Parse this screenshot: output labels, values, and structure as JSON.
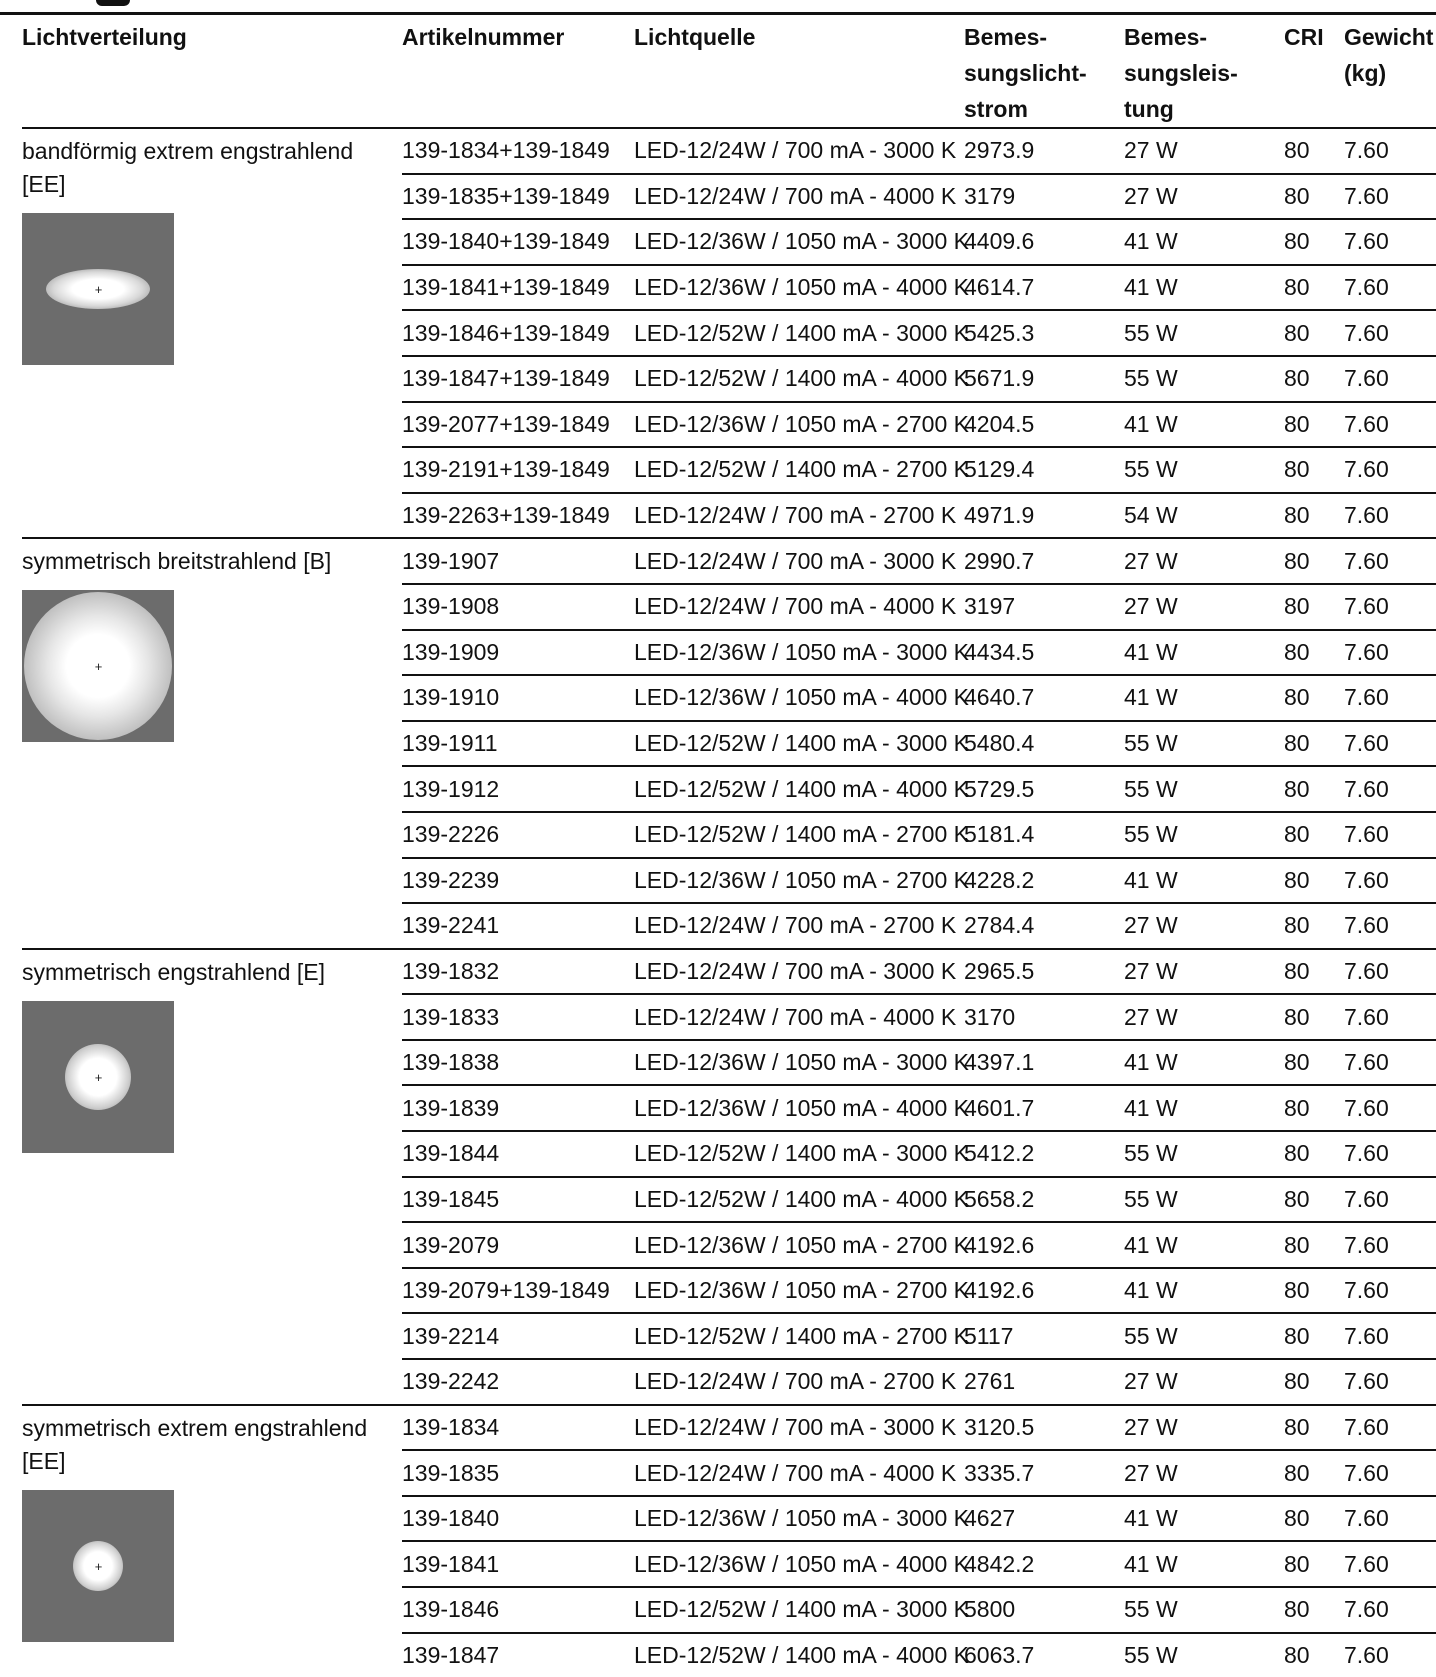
{
  "table": {
    "headers": {
      "lichtverteilung": "Lichtverteilung",
      "artikelnummer": "Artikelnummer",
      "lichtquelle": "Lichtquelle",
      "lichtstrom": [
        "Bemes-",
        "sungslicht-",
        "strom"
      ],
      "leistung": [
        "Bemes-",
        "sungsleis-",
        "tung"
      ],
      "cri": "CRI",
      "gewicht": [
        "Gewicht",
        "(kg)"
      ]
    },
    "groups": [
      {
        "label": "bandförmig extrem engstrahlend [EE]",
        "icon": "band-beam-icon",
        "rows": [
          [
            "139-1834+139-1849",
            "LED-12/24W / 700 mA - 3000 K",
            "2973.9",
            "27 W",
            "80",
            "7.60"
          ],
          [
            "139-1835+139-1849",
            "LED-12/24W / 700 mA - 4000 K",
            "3179",
            "27 W",
            "80",
            "7.60"
          ],
          [
            "139-1840+139-1849",
            "LED-12/36W / 1050 mA - 3000 K",
            "4409.6",
            "41 W",
            "80",
            "7.60"
          ],
          [
            "139-1841+139-1849",
            "LED-12/36W / 1050 mA - 4000 K",
            "4614.7",
            "41 W",
            "80",
            "7.60"
          ],
          [
            "139-1846+139-1849",
            "LED-12/52W / 1400 mA - 3000 K",
            "5425.3",
            "55 W",
            "80",
            "7.60"
          ],
          [
            "139-1847+139-1849",
            "LED-12/52W / 1400 mA - 4000 K",
            "5671.9",
            "55 W",
            "80",
            "7.60"
          ],
          [
            "139-2077+139-1849",
            "LED-12/36W / 1050 mA - 2700 K",
            "4204.5",
            "41 W",
            "80",
            "7.60"
          ],
          [
            "139-2191+139-1849",
            "LED-12/52W / 1400 mA - 2700 K",
            "5129.4",
            "55 W",
            "80",
            "7.60"
          ],
          [
            "139-2263+139-1849",
            "LED-12/24W / 700 mA - 2700 K",
            "4971.9",
            "54 W",
            "80",
            "7.60"
          ]
        ]
      },
      {
        "label": "symmetrisch breitstrahlend [B]",
        "icon": "wide-beam-icon",
        "rows": [
          [
            "139-1907",
            "LED-12/24W / 700 mA - 3000 K",
            "2990.7",
            "27 W",
            "80",
            "7.60"
          ],
          [
            "139-1908",
            "LED-12/24W / 700 mA - 4000 K",
            "3197",
            "27 W",
            "80",
            "7.60"
          ],
          [
            "139-1909",
            "LED-12/36W / 1050 mA - 3000 K",
            "4434.5",
            "41 W",
            "80",
            "7.60"
          ],
          [
            "139-1910",
            "LED-12/36W / 1050 mA - 4000 K",
            "4640.7",
            "41 W",
            "80",
            "7.60"
          ],
          [
            "139-1911",
            "LED-12/52W / 1400 mA - 3000 K",
            "5480.4",
            "55 W",
            "80",
            "7.60"
          ],
          [
            "139-1912",
            "LED-12/52W / 1400 mA - 4000 K",
            "5729.5",
            "55 W",
            "80",
            "7.60"
          ],
          [
            "139-2226",
            "LED-12/52W / 1400 mA - 2700 K",
            "5181.4",
            "55 W",
            "80",
            "7.60"
          ],
          [
            "139-2239",
            "LED-12/36W / 1050 mA - 2700 K",
            "4228.2",
            "41 W",
            "80",
            "7.60"
          ],
          [
            "139-2241",
            "LED-12/24W / 700 mA - 2700 K",
            "2784.4",
            "27 W",
            "80",
            "7.60"
          ]
        ]
      },
      {
        "label": "symmetrisch engstrahlend [E]",
        "icon": "narrow-beam-icon",
        "rows": [
          [
            "139-1832",
            "LED-12/24W / 700 mA - 3000 K",
            "2965.5",
            "27 W",
            "80",
            "7.60"
          ],
          [
            "139-1833",
            "LED-12/24W / 700 mA - 4000 K",
            "3170",
            "27 W",
            "80",
            "7.60"
          ],
          [
            "139-1838",
            "LED-12/36W / 1050 mA - 3000 K",
            "4397.1",
            "41 W",
            "80",
            "7.60"
          ],
          [
            "139-1839",
            "LED-12/36W / 1050 mA - 4000 K",
            "4601.7",
            "41 W",
            "80",
            "7.60"
          ],
          [
            "139-1844",
            "LED-12/52W / 1400 mA - 3000 K",
            "5412.2",
            "55 W",
            "80",
            "7.60"
          ],
          [
            "139-1845",
            "LED-12/52W / 1400 mA - 4000 K",
            "5658.2",
            "55 W",
            "80",
            "7.60"
          ],
          [
            "139-2079",
            "LED-12/36W / 1050 mA - 2700 K",
            "4192.6",
            "41 W",
            "80",
            "7.60"
          ],
          [
            "139-2079+139-1849",
            "LED-12/36W / 1050 mA - 2700 K",
            "4192.6",
            "41 W",
            "80",
            "7.60"
          ],
          [
            "139-2214",
            "LED-12/52W / 1400 mA - 2700 K",
            "5117",
            "55 W",
            "80",
            "7.60"
          ],
          [
            "139-2242",
            "LED-12/24W / 700 mA - 2700 K",
            "2761",
            "27 W",
            "80",
            "7.60"
          ]
        ]
      },
      {
        "label": "symmetrisch extrem engstrahlend [EE]",
        "icon": "extreme-narrow-beam-icon",
        "rows": [
          [
            "139-1834",
            "LED-12/24W / 700 mA - 3000 K",
            "3120.5",
            "27 W",
            "80",
            "7.60"
          ],
          [
            "139-1835",
            "LED-12/24W / 700 mA - 4000 K",
            "3335.7",
            "27 W",
            "80",
            "7.60"
          ],
          [
            "139-1840",
            "LED-12/36W / 1050 mA - 3000 K",
            "4627",
            "41 W",
            "80",
            "7.60"
          ],
          [
            "139-1841",
            "LED-12/36W / 1050 mA - 4000 K",
            "4842.2",
            "41 W",
            "80",
            "7.60"
          ],
          [
            "139-1846",
            "LED-12/52W / 1400 mA - 3000 K",
            "5800",
            "55 W",
            "80",
            "7.60"
          ],
          [
            "139-1847",
            "LED-12/52W / 1400 mA - 4000 K",
            "6063.7",
            "55 W",
            "80",
            "7.60"
          ]
        ]
      }
    ]
  }
}
